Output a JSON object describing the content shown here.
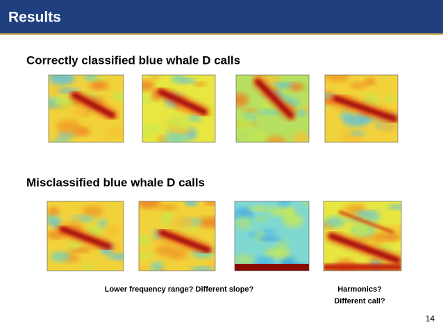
{
  "header": {
    "title": "Results"
  },
  "sections": [
    {
      "title": "Correctly classified blue whale D calls"
    },
    {
      "title": "Misclassified blue whale D calls"
    }
  ],
  "captions": [
    {
      "lines": [
        "Lower frequency range? Different slope?"
      ]
    },
    {
      "lines": [
        "Harmonics?",
        "Different call?"
      ]
    }
  ],
  "page_number": 14
}
